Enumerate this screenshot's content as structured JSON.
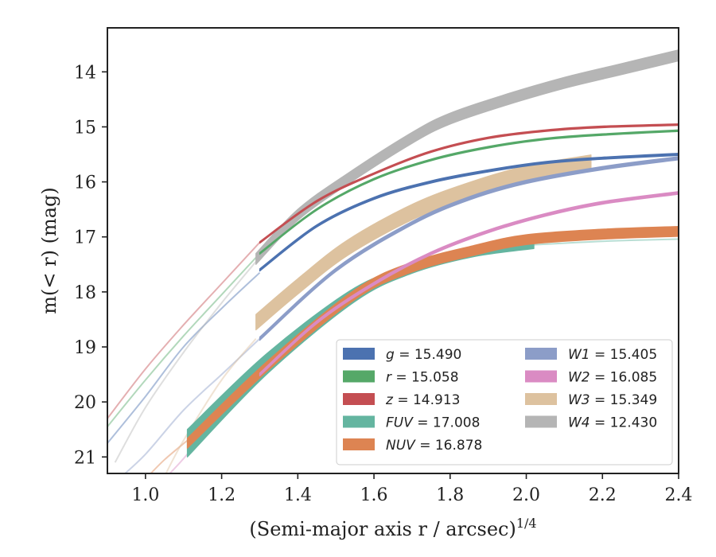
{
  "chart_data": {
    "type": "line",
    "xlabel": "(Semi-major axis r / arcsec)",
    "xlabel_sup": "1/4",
    "ylabel": "m(< r) (mag)",
    "xlim": [
      0.9,
      2.4
    ],
    "ylim": [
      21.3,
      13.2
    ],
    "y_inverted": true,
    "x_ticks": [
      "1.0",
      "1.2",
      "1.4",
      "1.6",
      "1.8",
      "2.0",
      "2.2",
      "2.4"
    ],
    "y_ticks": [
      "14",
      "15",
      "16",
      "17",
      "18",
      "19",
      "20",
      "21"
    ],
    "grid": false,
    "legend_position": "lower-right",
    "series": [
      {
        "name": "g = 15.490",
        "label_var": "g",
        "label_val": " = 15.490",
        "color": "#4c72b0",
        "legend_col": 0,
        "faint": [
          [
            0.9,
            20.75
          ],
          [
            1.0,
            19.9
          ],
          [
            1.1,
            19.0
          ],
          [
            1.2,
            18.3
          ],
          [
            1.3,
            17.65
          ]
        ],
        "band": {
          "x": [
            1.3,
            1.45,
            1.6,
            1.75,
            1.9,
            2.05,
            2.2,
            2.4
          ],
          "y": [
            17.6,
            16.8,
            16.3,
            16.0,
            15.8,
            15.65,
            15.57,
            15.5
          ],
          "width": 0.04
        }
      },
      {
        "name": "r = 15.058",
        "label_var": "r",
        "label_val": " = 15.058",
        "color": "#55a868",
        "legend_col": 0,
        "faint": [
          [
            0.9,
            20.45
          ],
          [
            1.0,
            19.6
          ],
          [
            1.1,
            18.8
          ],
          [
            1.2,
            18.05
          ],
          [
            1.3,
            17.3
          ]
        ],
        "band": {
          "x": [
            1.3,
            1.45,
            1.6,
            1.75,
            1.9,
            2.05,
            2.2,
            2.4
          ],
          "y": [
            17.3,
            16.5,
            15.95,
            15.6,
            15.37,
            15.22,
            15.14,
            15.07
          ],
          "width": 0.03
        }
      },
      {
        "name": "z = 14.913",
        "label_var": "z",
        "label_val": " = 14.913",
        "color": "#c44e52",
        "legend_col": 0,
        "faint": [
          [
            0.9,
            20.3
          ],
          [
            1.0,
            19.4
          ],
          [
            1.1,
            18.6
          ],
          [
            1.2,
            17.85
          ],
          [
            1.3,
            17.1
          ]
        ],
        "band": {
          "x": [
            1.3,
            1.45,
            1.6,
            1.75,
            1.9,
            2.05,
            2.2,
            2.4
          ],
          "y": [
            17.1,
            16.35,
            15.85,
            15.45,
            15.2,
            15.07,
            15.0,
            14.96
          ],
          "width": 0.03
        }
      },
      {
        "name": "FUV = 17.008",
        "label_var": "FUV",
        "label_val": " = 17.008",
        "color": "#64b5a0",
        "legend_col": 0,
        "faint": [
          [
            2.0,
            17.15
          ],
          [
            2.2,
            17.08
          ],
          [
            2.4,
            17.04
          ]
        ],
        "band": {
          "x": [
            1.11,
            1.32,
            1.55,
            1.7,
            1.86,
            2.02
          ],
          "y": [
            20.75,
            19.3,
            18.05,
            17.6,
            17.3,
            17.15
          ],
          "width": 0.5
        }
      },
      {
        "name": "NUV = 16.878",
        "label_var": "NUV",
        "label_val": " = 16.878",
        "color": "#dd8452",
        "legend_col": 0,
        "faint": [
          [
            1.0,
            21.4
          ],
          [
            1.05,
            21.05
          ],
          [
            1.11,
            20.7
          ]
        ],
        "band": {
          "x": [
            1.11,
            1.32,
            1.55,
            1.7,
            1.86,
            2.0,
            2.2,
            2.4
          ],
          "y": [
            20.75,
            19.35,
            18.05,
            17.55,
            17.25,
            17.05,
            16.95,
            16.9
          ],
          "width": 0.18
        }
      },
      {
        "name": "W1 = 15.405",
        "label_var": "W1",
        "label_val": " = 15.405",
        "color": "#8c9dc8",
        "legend_col": 1,
        "faint": [
          [
            0.93,
            21.4
          ],
          [
            1.0,
            20.95
          ],
          [
            1.1,
            20.15
          ],
          [
            1.2,
            19.5
          ],
          [
            1.3,
            18.85
          ]
        ],
        "band": {
          "x": [
            1.3,
            1.5,
            1.7,
            1.85,
            2.0,
            2.2,
            2.4
          ],
          "y": [
            18.85,
            17.6,
            16.75,
            16.3,
            16.0,
            15.75,
            15.57
          ],
          "width": 0.06
        }
      },
      {
        "name": "W2 = 16.085",
        "label_var": "W2",
        "label_val": " = 16.085",
        "color": "#da8bc3",
        "legend_col": 1,
        "faint": [
          [
            1.05,
            21.4
          ],
          [
            1.11,
            20.95
          ],
          [
            1.2,
            20.15
          ],
          [
            1.3,
            19.5
          ]
        ],
        "band": {
          "x": [
            1.3,
            1.45,
            1.6,
            1.75,
            1.9,
            2.05,
            2.2,
            2.4
          ],
          "y": [
            19.5,
            18.55,
            17.85,
            17.3,
            16.9,
            16.6,
            16.38,
            16.2
          ],
          "width": 0.05
        }
      },
      {
        "name": "W3 = 15.349",
        "label_var": "W3",
        "label_val": " = 15.349",
        "color": "#ddc29f",
        "legend_col": 1,
        "faint": [
          [
            1.05,
            21.35
          ],
          [
            1.1,
            20.7
          ],
          [
            1.2,
            19.6
          ],
          [
            1.29,
            18.85
          ]
        ],
        "band": {
          "x": [
            1.29,
            1.4,
            1.53,
            1.7,
            1.85,
            2.0,
            2.17
          ],
          "y": [
            18.55,
            17.9,
            17.2,
            16.55,
            16.15,
            15.85,
            15.65
          ],
          "width": 0.28
        }
      },
      {
        "name": "W4 = 12.430",
        "label_var": "W4",
        "label_val": " = 12.430",
        "color": "#b5b5b5",
        "legend_col": 1,
        "faint": [
          [
            0.92,
            21.1
          ],
          [
            1.0,
            20.1
          ],
          [
            1.1,
            19.1
          ],
          [
            1.2,
            18.2
          ],
          [
            1.29,
            17.45
          ]
        ],
        "band": {
          "x": [
            1.29,
            1.4,
            1.53,
            1.7,
            1.8,
            1.95,
            2.1,
            2.25,
            2.4
          ],
          "y": [
            17.4,
            16.6,
            15.95,
            15.2,
            14.85,
            14.5,
            14.2,
            13.95,
            13.7
          ],
          "width": 0.2
        }
      }
    ]
  }
}
